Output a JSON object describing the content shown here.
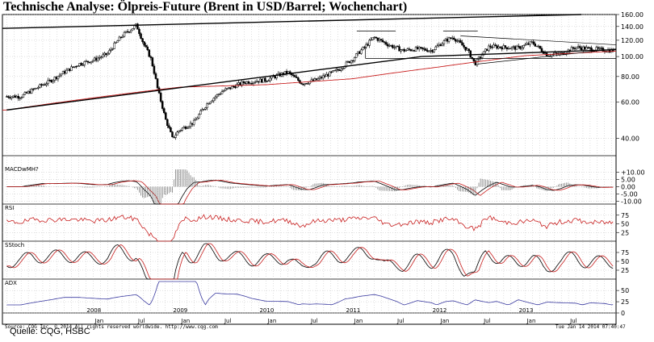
{
  "title": "Technische Analyse: Ölpreis-Future (Brent in USD/Barrel; Wochenchart)",
  "credit": "Quelle: CQG, HSBC",
  "footer_copyright": "Source: CQG Inc. © 2014 All rights reserved worldwide. http://www.cqg.com",
  "footer_timestamp": "Tue Jan 14 2014 07:40:47",
  "chart_data": [
    {
      "type": "candlestick",
      "panel": "price",
      "title": "Technische Analyse: Ölpreis-Future (Brent in USD/Barrel; Wochenchart)",
      "y_scale": "log",
      "ylim": [
        33,
        160
      ],
      "y_ticks": [
        "160.00",
        "140.00",
        "120.00",
        "100.00",
        "80.00",
        "60.00",
        "40.00"
      ],
      "x_labels": [
        "Jan",
        "2008",
        "Jul",
        "Jan",
        "2009",
        "Jul",
        "Jan",
        "2010",
        "Jul",
        "Jan",
        "2011",
        "Jul",
        "Jan",
        "2012",
        "Jul",
        "Jan",
        "2013",
        "Jul"
      ],
      "close_path": [
        {
          "date": "2007-03",
          "value": 64
        },
        {
          "date": "2007-07",
          "value": 76
        },
        {
          "date": "2007-11",
          "value": 92
        },
        {
          "date": "2008-01",
          "value": 96
        },
        {
          "date": "2008-03",
          "value": 103
        },
        {
          "date": "2008-05",
          "value": 126
        },
        {
          "date": "2008-07",
          "value": 142
        },
        {
          "date": "2008-08",
          "value": 115
        },
        {
          "date": "2008-09",
          "value": 98
        },
        {
          "date": "2008-10",
          "value": 68
        },
        {
          "date": "2008-11",
          "value": 50
        },
        {
          "date": "2008-12",
          "value": 40
        },
        {
          "date": "2009-01",
          "value": 44
        },
        {
          "date": "2009-03",
          "value": 48
        },
        {
          "date": "2009-05",
          "value": 60
        },
        {
          "date": "2009-07",
          "value": 68
        },
        {
          "date": "2009-10",
          "value": 75
        },
        {
          "date": "2010-01",
          "value": 77
        },
        {
          "date": "2010-04",
          "value": 84
        },
        {
          "date": "2010-06",
          "value": 74
        },
        {
          "date": "2010-08",
          "value": 77
        },
        {
          "date": "2010-11",
          "value": 86
        },
        {
          "date": "2011-01",
          "value": 97
        },
        {
          "date": "2011-03",
          "value": 114
        },
        {
          "date": "2011-04",
          "value": 124
        },
        {
          "date": "2011-06",
          "value": 114
        },
        {
          "date": "2011-08",
          "value": 107
        },
        {
          "date": "2011-10",
          "value": 109
        },
        {
          "date": "2011-12",
          "value": 107
        },
        {
          "date": "2012-02",
          "value": 120
        },
        {
          "date": "2012-03",
          "value": 124
        },
        {
          "date": "2012-05",
          "value": 107
        },
        {
          "date": "2012-06",
          "value": 92
        },
        {
          "date": "2012-08",
          "value": 112
        },
        {
          "date": "2012-10",
          "value": 111
        },
        {
          "date": "2012-12",
          "value": 110
        },
        {
          "date": "2013-02",
          "value": 117
        },
        {
          "date": "2013-04",
          "value": 102
        },
        {
          "date": "2013-06",
          "value": 103
        },
        {
          "date": "2013-08",
          "value": 111
        },
        {
          "date": "2013-10",
          "value": 109
        },
        {
          "date": "2014-01",
          "value": 107
        }
      ],
      "overlays": [
        {
          "name": "MA",
          "color": "#c81e1e",
          "values": [
            {
              "date": "2007-01",
              "value": 55
            },
            {
              "date": "2008-01",
              "value": 63
            },
            {
              "date": "2009-01",
              "value": 71
            },
            {
              "date": "2010-01",
              "value": 73
            },
            {
              "date": "2011-01",
              "value": 78
            },
            {
              "date": "2012-01",
              "value": 89
            },
            {
              "date": "2013-01",
              "value": 101
            },
            {
              "date": "2014-01",
              "value": 106
            }
          ]
        },
        {
          "name": "trendline",
          "color": "#000000",
          "values": [
            {
              "date": "2007-01",
              "value": 55
            },
            {
              "date": "2011-10",
              "value": 100
            },
            {
              "date": "2014-01",
              "value": 107
            }
          ]
        }
      ]
    },
    {
      "type": "line",
      "panel": "MACD",
      "label": "MACDwMH?",
      "y_ticks": [
        "+10.00",
        "5.00",
        "0.00",
        "-5.00",
        "-10.00"
      ],
      "ylim": [
        -12,
        12
      ]
    },
    {
      "type": "line",
      "panel": "RSI",
      "label": "RSI",
      "y_ticks": [
        "75",
        "50",
        "25"
      ],
      "ylim": [
        0,
        100
      ]
    },
    {
      "type": "line",
      "panel": "SStoch",
      "label": "SStoch",
      "y_ticks": [
        "75",
        "50",
        "25"
      ],
      "ylim": [
        0,
        100
      ]
    },
    {
      "type": "line",
      "panel": "ADX",
      "label": "ADX",
      "y_ticks": [
        "50",
        "25",
        "0"
      ],
      "ylim": [
        0,
        70
      ]
    }
  ]
}
